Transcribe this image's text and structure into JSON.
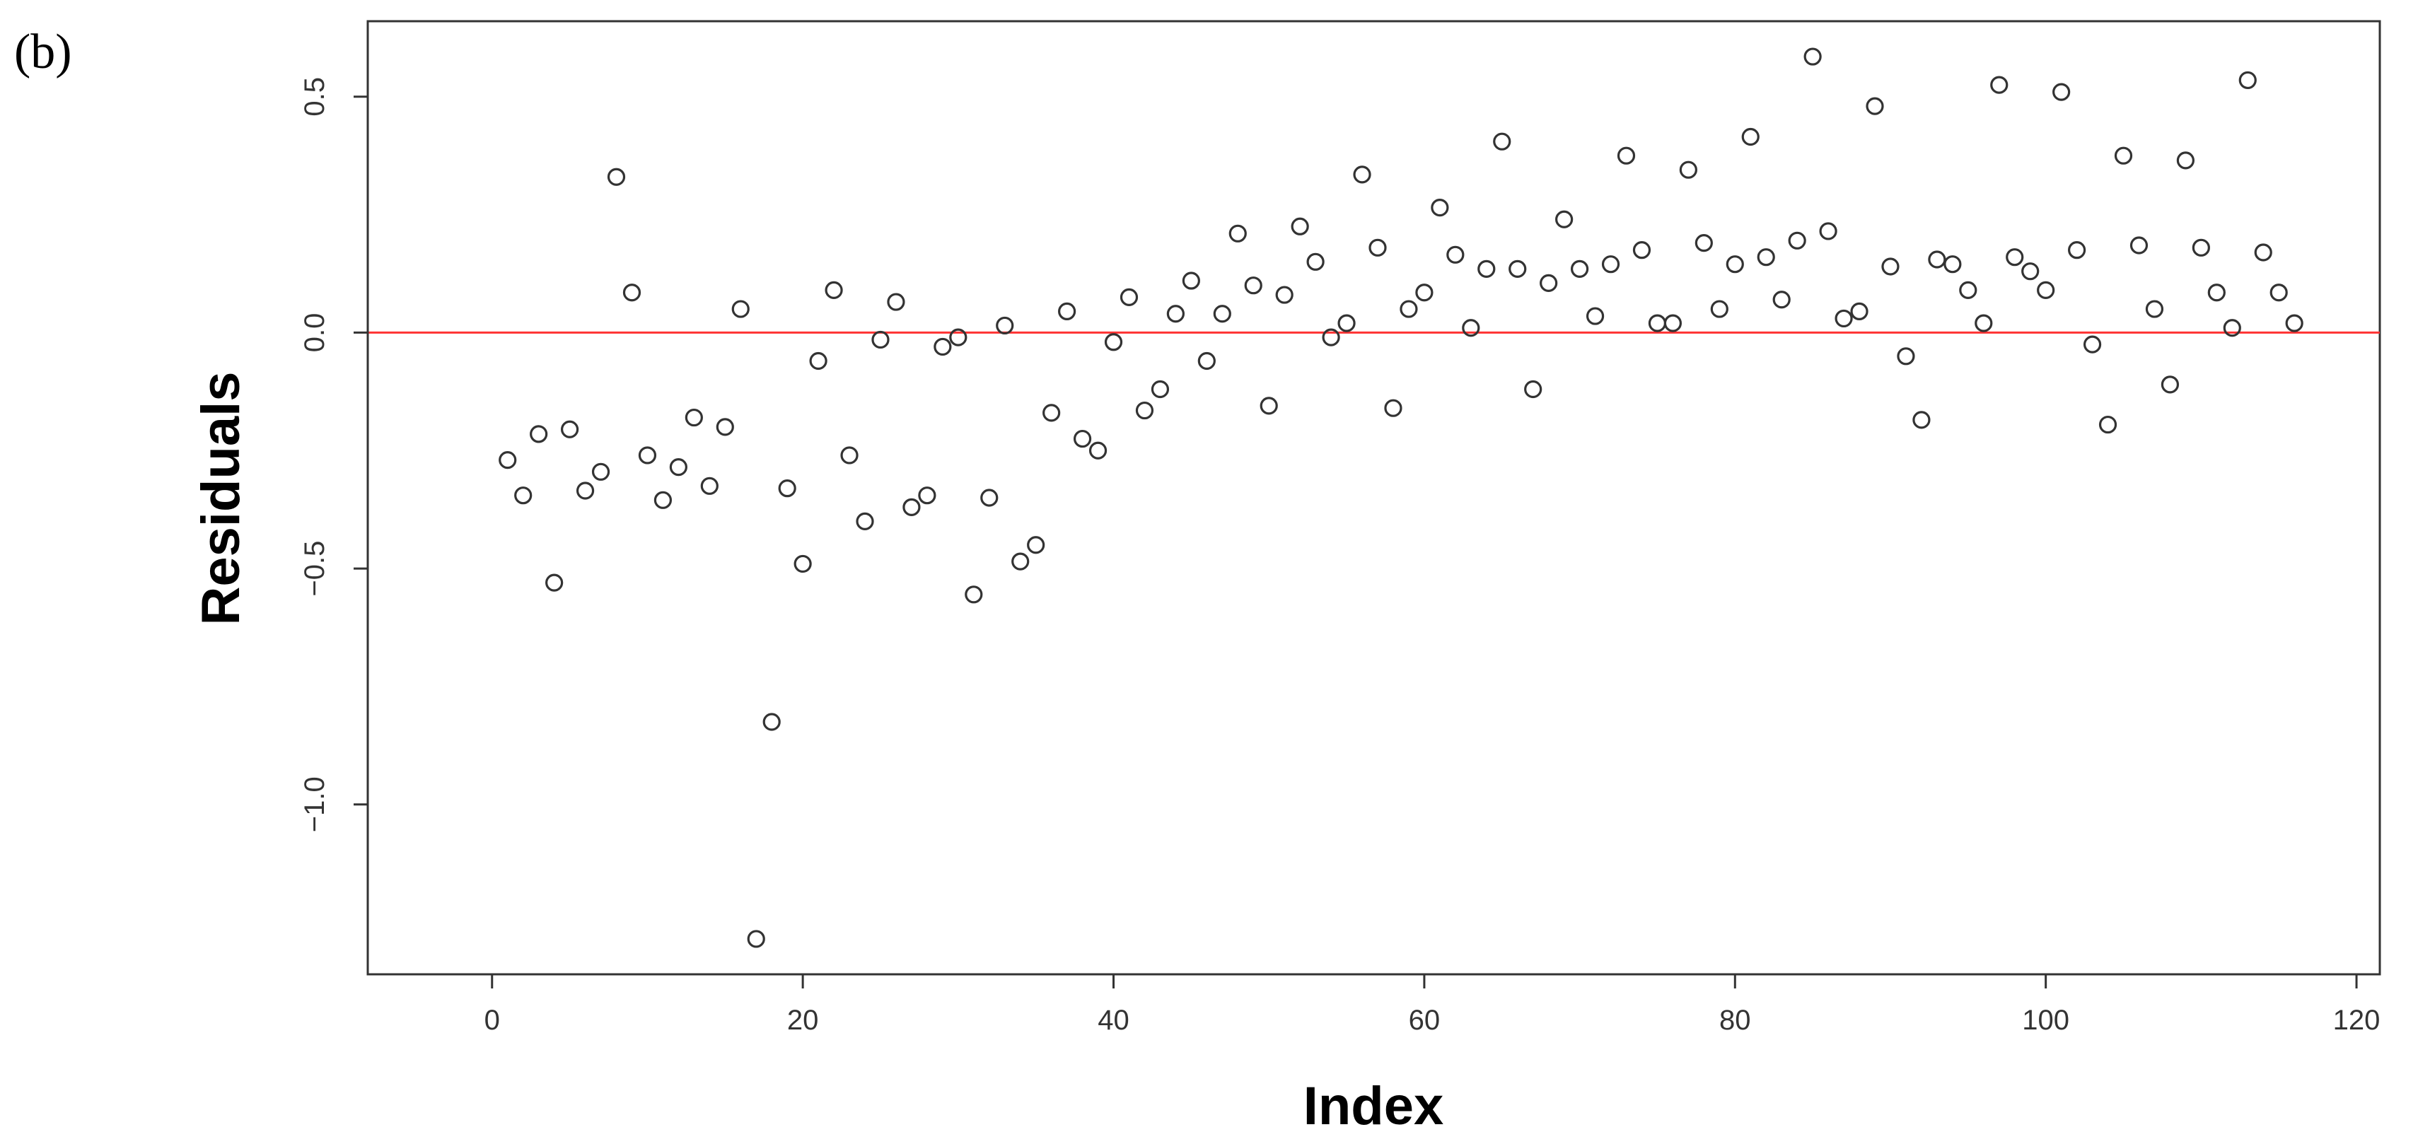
{
  "panel_label": "(b)",
  "colors": {
    "reference_line": "#ff3333",
    "points": "#333333",
    "axes": "#333333"
  },
  "chart_data": {
    "type": "scatter",
    "xlabel": "Index",
    "ylabel": "Residuals",
    "xlim": [
      -8,
      121.5
    ],
    "ylim": [
      -1.36,
      0.66
    ],
    "xticks": [
      0,
      20,
      40,
      60,
      80,
      100,
      120
    ],
    "xtick_labels": [
      "0",
      "20",
      "40",
      "60",
      "80",
      "100",
      "120"
    ],
    "yticks": [
      -1.0,
      -0.5,
      0.0,
      0.5
    ],
    "ytick_labels": [
      "−1.0",
      "−0.5",
      "0.0",
      "0.5"
    ],
    "reference_line": {
      "y": 0.0,
      "color": "red"
    },
    "marker": "open-circle",
    "grid": false,
    "x": [
      1,
      2,
      3,
      4,
      5,
      6,
      7,
      8,
      9,
      10,
      11,
      12,
      13,
      14,
      15,
      16,
      17,
      18,
      19,
      20,
      21,
      22,
      23,
      24,
      25,
      26,
      27,
      28,
      29,
      30,
      31,
      32,
      33,
      34,
      35,
      36,
      37,
      38,
      39,
      40,
      41,
      42,
      43,
      44,
      45,
      46,
      47,
      48,
      49,
      50,
      51,
      52,
      53,
      54,
      55,
      56,
      57,
      58,
      59,
      60,
      61,
      62,
      63,
      64,
      65,
      66,
      67,
      68,
      69,
      70,
      71,
      72,
      73,
      74,
      75,
      76,
      77,
      78,
      79,
      80,
      81,
      82,
      83,
      84,
      85,
      86,
      87,
      88,
      89,
      90,
      91,
      92,
      93,
      94,
      95,
      96,
      97,
      98,
      99,
      100,
      101,
      102,
      103,
      104,
      105,
      106,
      107,
      108,
      109,
      110,
      111,
      112,
      113,
      114,
      115,
      116
    ],
    "y": [
      -0.27,
      -0.345,
      -0.215,
      -0.53,
      -0.205,
      -0.335,
      -0.295,
      0.33,
      0.085,
      -0.26,
      -0.355,
      -0.285,
      -0.18,
      -0.325,
      -0.2,
      0.05,
      -1.285,
      -0.825,
      -0.33,
      -0.49,
      -0.06,
      0.09,
      -0.26,
      -0.4,
      -0.015,
      0.065,
      -0.37,
      -0.345,
      -0.03,
      -0.01,
      -0.555,
      -0.35,
      0.015,
      -0.485,
      -0.45,
      -0.17,
      0.045,
      -0.225,
      -0.25,
      -0.02,
      0.075,
      -0.165,
      -0.12,
      0.04,
      0.11,
      -0.06,
      0.04,
      0.21,
      0.1,
      -0.155,
      0.08,
      0.225,
      0.15,
      -0.01,
      0.02,
      0.335,
      0.18,
      -0.16,
      0.05,
      0.085,
      0.265,
      0.165,
      0.01,
      0.135,
      0.405,
      0.135,
      -0.12,
      0.105,
      0.24,
      0.135,
      0.035,
      0.145,
      0.375,
      0.175,
      0.02,
      0.02,
      0.345,
      0.19,
      0.05,
      0.145,
      0.415,
      0.16,
      0.07,
      0.195,
      0.585,
      0.215,
      0.03,
      0.045,
      0.48,
      0.14,
      -0.05,
      -0.185,
      0.155,
      0.145,
      0.09,
      0.02,
      0.525,
      0.16,
      0.13,
      0.09,
      0.51,
      0.175,
      -0.025,
      -0.195,
      0.375,
      0.185,
      0.05,
      -0.11,
      0.365,
      0.18,
      0.085,
      0.01,
      0.535,
      0.17,
      0.085,
      0.02
    ]
  }
}
